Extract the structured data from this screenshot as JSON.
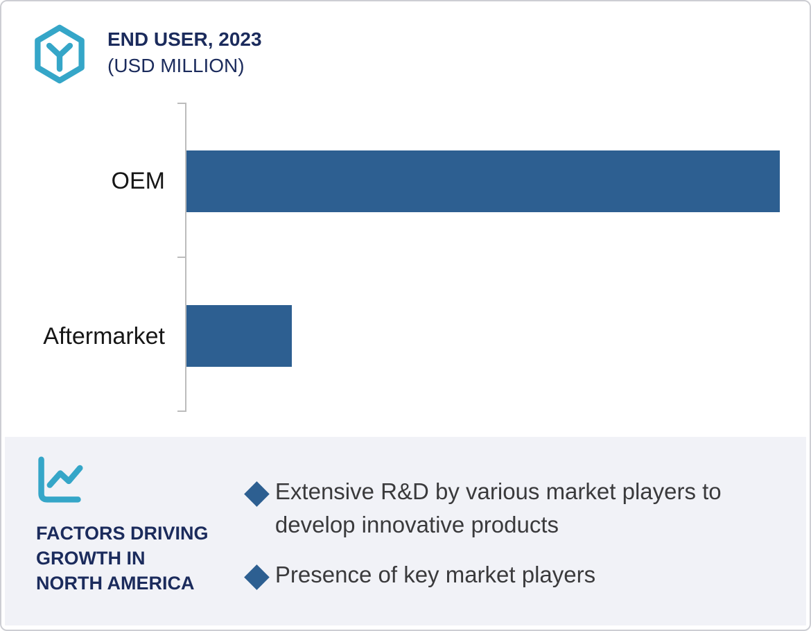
{
  "header": {
    "title_line1": "END USER, 2023",
    "title_line2": "(USD MILLION)",
    "icon": "hexagon-y-logo",
    "accent_color": "#35a6c8",
    "title_color": "#1b2b5c"
  },
  "chart_data": {
    "type": "bar",
    "orientation": "horizontal",
    "title": "END USER, 2023 (USD MILLION)",
    "categories": [
      "OEM",
      "Aftermarket"
    ],
    "values": [
      100,
      17.8
    ],
    "values_note": "relative bar lengths in percent of longest bar; numeric value axis is not shown in the image",
    "xlim": [
      0,
      100
    ],
    "bar_color": "#2d5f91",
    "axis_color": "#bcbcbc",
    "gridlines": false,
    "data_labels": false,
    "legend": false
  },
  "factors": {
    "icon": "line-chart-icon",
    "heading_lines": [
      "FACTORS DRIVING",
      "GROWTH IN",
      "NORTH AMERICA"
    ],
    "heading_color": "#1b2b5c",
    "bullet_glyph": "◆",
    "bullet_color": "#2d5f91",
    "panel_bg": "#f1f2f7",
    "text_color": "#3a3a3c",
    "items": [
      "Extensive R&D by various market players to develop innovative products",
      "Presence of key market players"
    ]
  }
}
